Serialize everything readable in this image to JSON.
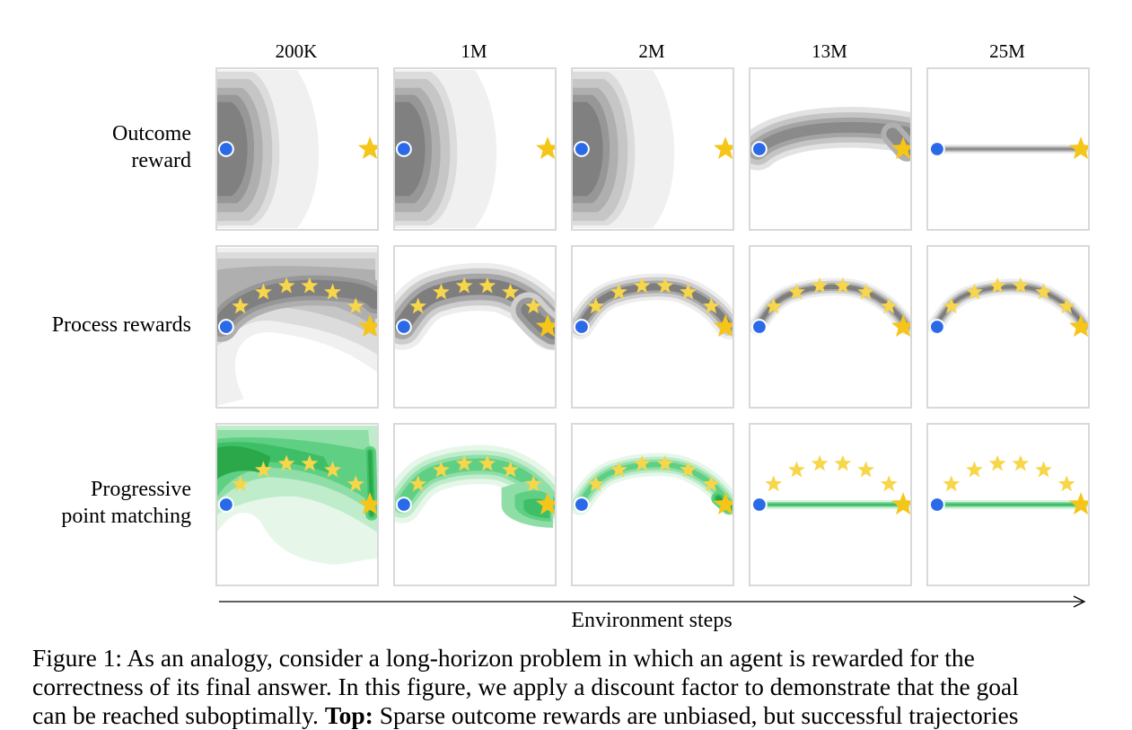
{
  "figure": {
    "columns": [
      "200K",
      "1M",
      "2M",
      "13M",
      "25M"
    ],
    "rows": [
      {
        "label_line1": "Outcome",
        "label_line2": "reward",
        "palette": "gray"
      },
      {
        "label_line1": "Process rewards",
        "label_line2": "",
        "palette": "gray"
      },
      {
        "label_line1": "Progressive",
        "label_line2": "point matching",
        "palette": "green"
      }
    ],
    "x_axis_label": "Environment steps",
    "colors": {
      "start_marker": "#2a6ae8",
      "goal_star": "#f5c518",
      "waypoint_star": "#f7d64a",
      "gray_dark": "#808080",
      "gray_light": "#f0f0f0",
      "green_dark": "#2aa84a",
      "green_light": "#e6f7ea",
      "panel_border": "#d9d9d9"
    },
    "icons": {
      "start": "circle-marker-icon",
      "goal": "star-icon",
      "waypoint": "star-icon"
    }
  },
  "caption": {
    "line1": "Figure 1:   As an analogy, consider a long-horizon problem in which an agent is rewarded for the",
    "line2": "correctness of its final answer. In this figure, we apply a discount factor to demonstrate that the goal",
    "line3_pre": "can be reached suboptimally. ",
    "line3_bold": "Top:",
    "line3_post": " Sparse outcome rewards are unbiased, but successful trajectories"
  }
}
